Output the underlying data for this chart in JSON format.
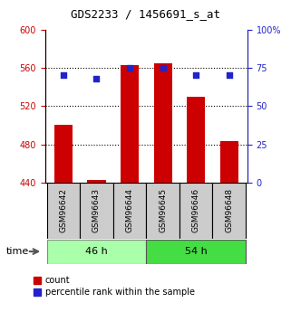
{
  "title": "GDS2233 / 1456691_s_at",
  "samples": [
    "GSM96642",
    "GSM96643",
    "GSM96644",
    "GSM96645",
    "GSM96646",
    "GSM96648"
  ],
  "counts": [
    500,
    443,
    563,
    565,
    530,
    483
  ],
  "percentiles": [
    70,
    68,
    75,
    75,
    70,
    70
  ],
  "ylim_left": [
    440,
    600
  ],
  "ylim_right": [
    0,
    100
  ],
  "yticks_left": [
    440,
    480,
    520,
    560,
    600
  ],
  "yticks_right": [
    0,
    25,
    50,
    75,
    100
  ],
  "grid_yticks": [
    480,
    520,
    560
  ],
  "groups": [
    {
      "label": "46 h",
      "color": "#AAFFAA",
      "darker": "#55DD55"
    },
    {
      "label": "54 h",
      "color": "#44DD44",
      "darker": "#22BB22"
    }
  ],
  "bar_color": "#CC0000",
  "dot_color": "#2222CC",
  "bar_width": 0.55,
  "left_axis_color": "#CC0000",
  "right_axis_color": "#2222CC",
  "sample_box_color": "#CCCCCC",
  "legend_labels": [
    "count",
    "percentile rank within the sample"
  ],
  "time_label": "time",
  "tick_fontsize": 7,
  "label_fontsize": 6.5,
  "title_fontsize": 9,
  "group_fontsize": 8,
  "legend_fontsize": 7
}
